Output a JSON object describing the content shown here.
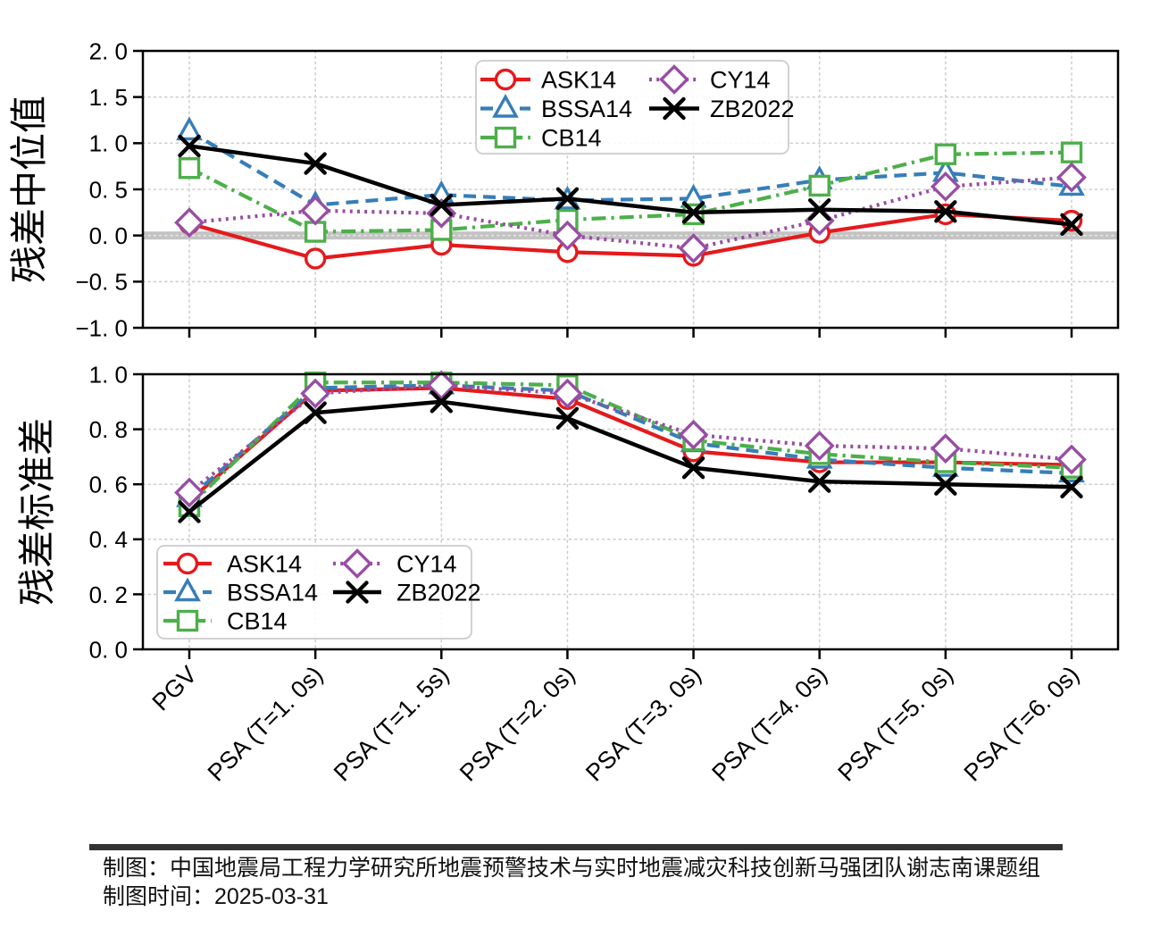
{
  "colors": {
    "ASK14": "#e41a1c",
    "BSSA14": "#377eb8",
    "CB14": "#4daf4a",
    "CY14": "#984ea3",
    "ZB2022": "#000000",
    "zero_band": "#c3c3c3",
    "grid": "#cfcfcf",
    "spine": "#000000",
    "legend_border": "#cccccc",
    "footer_bar": "#333333"
  },
  "footer": {
    "line1": "制图：中国地震局工程力学研究所地震预警技术与实时地震减灾科技创新马强团队谢志南课题组",
    "line2": "制图时间：2025-03-31"
  },
  "chart_data": [
    {
      "type": "line",
      "panel": "median-residual",
      "title": "",
      "xlabel": "",
      "ylabel": "残差中位值",
      "ylim": [
        -1.0,
        2.0
      ],
      "yticks": [
        2.0,
        1.5,
        1.0,
        0.5,
        0.0,
        -0.5,
        -1.0
      ],
      "ytick_labels": [
        "2. 0",
        "1. 5",
        "1. 0",
        "0. 5",
        "0. 0",
        "−0. 5",
        "−1. 0"
      ],
      "categories": [
        "PGV",
        "PSA (T=1. 0s)",
        "PSA (T=1. 5s)",
        "PSA (T=2. 0s)",
        "PSA (T=3. 0s)",
        "PSA (T=4. 0s)",
        "PSA (T=5. 0s)",
        "PSA (T=6. 0s)"
      ],
      "show_xticklabels": false,
      "grid": true,
      "zero_band": true,
      "legend_position": "upper center",
      "series": [
        {
          "name": "ASK14",
          "color": "#e41a1c",
          "marker": "circle",
          "linestyle": "solid",
          "values": [
            0.13,
            -0.25,
            -0.1,
            -0.18,
            -0.22,
            0.03,
            0.23,
            0.16
          ]
        },
        {
          "name": "BSSA14",
          "color": "#377eb8",
          "marker": "triangle",
          "linestyle": "dashed",
          "values": [
            1.13,
            0.33,
            0.44,
            0.38,
            0.4,
            0.6,
            0.68,
            0.53
          ]
        },
        {
          "name": "CB14",
          "color": "#4daf4a",
          "marker": "square",
          "linestyle": "dashdot",
          "values": [
            0.73,
            0.04,
            0.06,
            0.17,
            0.23,
            0.54,
            0.88,
            0.9
          ]
        },
        {
          "name": "CY14",
          "color": "#984ea3",
          "marker": "diamond",
          "linestyle": "dotted",
          "values": [
            0.14,
            0.27,
            0.24,
            0.0,
            -0.14,
            0.16,
            0.53,
            0.63
          ]
        },
        {
          "name": "ZB2022",
          "color": "#000000",
          "marker": "x",
          "linestyle": "solid",
          "values": [
            0.97,
            0.78,
            0.33,
            0.4,
            0.25,
            0.28,
            0.26,
            0.12
          ]
        }
      ]
    },
    {
      "type": "line",
      "panel": "stddev-residual",
      "title": "",
      "xlabel": "",
      "ylabel": "残差标准差",
      "ylim": [
        0.0,
        1.0
      ],
      "yticks": [
        1.0,
        0.8,
        0.6,
        0.4,
        0.2,
        0.0
      ],
      "ytick_labels": [
        "1. 0",
        "0. 8",
        "0. 6",
        "0. 4",
        "0. 2",
        "0. 0"
      ],
      "categories": [
        "PGV",
        "PSA (T=1. 0s)",
        "PSA (T=1. 5s)",
        "PSA (T=2. 0s)",
        "PSA (T=3. 0s)",
        "PSA (T=4. 0s)",
        "PSA (T=5. 0s)",
        "PSA (T=6. 0s)"
      ],
      "show_xticklabels": true,
      "grid": true,
      "zero_band": false,
      "legend_position": "lower left",
      "series": [
        {
          "name": "ASK14",
          "color": "#e41a1c",
          "marker": "circle",
          "linestyle": "solid",
          "values": [
            0.54,
            0.94,
            0.95,
            0.91,
            0.72,
            0.68,
            0.68,
            0.67
          ]
        },
        {
          "name": "BSSA14",
          "color": "#377eb8",
          "marker": "triangle",
          "linestyle": "dashed",
          "values": [
            0.55,
            0.95,
            0.96,
            0.94,
            0.75,
            0.69,
            0.66,
            0.64
          ]
        },
        {
          "name": "CB14",
          "color": "#4daf4a",
          "marker": "square",
          "linestyle": "dashdot",
          "values": [
            0.52,
            0.97,
            0.97,
            0.96,
            0.76,
            0.71,
            0.68,
            0.66
          ]
        },
        {
          "name": "CY14",
          "color": "#984ea3",
          "marker": "diamond",
          "linestyle": "dotted",
          "values": [
            0.57,
            0.93,
            0.96,
            0.93,
            0.78,
            0.74,
            0.73,
            0.69
          ]
        },
        {
          "name": "ZB2022",
          "color": "#000000",
          "marker": "x",
          "linestyle": "solid",
          "values": [
            0.5,
            0.86,
            0.9,
            0.84,
            0.66,
            0.61,
            0.6,
            0.59
          ]
        }
      ]
    }
  ]
}
